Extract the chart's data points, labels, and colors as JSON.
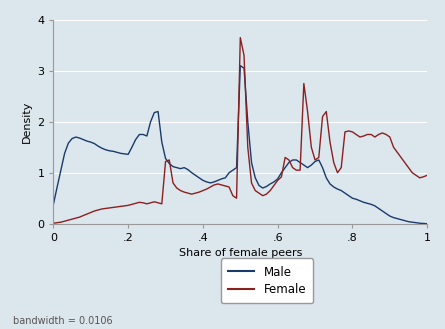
{
  "title": "",
  "xlabel": "Share of female peers",
  "ylabel": "Density",
  "bandwidth_text": "bandwidth = 0.0106",
  "male_color": "#1a3a6b",
  "female_color": "#8b2020",
  "background_color": "#dce6ed",
  "plot_bg_color": "#dce6ed",
  "xlim": [
    0,
    1
  ],
  "ylim": [
    0,
    4
  ],
  "yticks": [
    0,
    1,
    2,
    3,
    4
  ],
  "xticks": [
    0,
    0.2,
    0.4,
    0.6,
    0.8,
    1.0
  ],
  "xticklabels": [
    "0",
    ".2",
    ".4",
    ".6",
    ".8",
    "1"
  ],
  "legend_labels": [
    "Male",
    "Female"
  ],
  "male_x": [
    0.0,
    0.01,
    0.02,
    0.03,
    0.04,
    0.05,
    0.06,
    0.07,
    0.08,
    0.09,
    0.1,
    0.11,
    0.12,
    0.13,
    0.14,
    0.15,
    0.16,
    0.17,
    0.18,
    0.19,
    0.2,
    0.21,
    0.22,
    0.23,
    0.24,
    0.25,
    0.26,
    0.27,
    0.28,
    0.29,
    0.3,
    0.31,
    0.32,
    0.33,
    0.34,
    0.35,
    0.36,
    0.37,
    0.38,
    0.39,
    0.4,
    0.41,
    0.42,
    0.43,
    0.44,
    0.45,
    0.46,
    0.47,
    0.48,
    0.49,
    0.5,
    0.51,
    0.52,
    0.53,
    0.54,
    0.55,
    0.56,
    0.57,
    0.58,
    0.59,
    0.6,
    0.61,
    0.62,
    0.63,
    0.64,
    0.65,
    0.66,
    0.67,
    0.68,
    0.69,
    0.7,
    0.71,
    0.72,
    0.73,
    0.74,
    0.75,
    0.76,
    0.77,
    0.78,
    0.79,
    0.8,
    0.81,
    0.82,
    0.83,
    0.84,
    0.85,
    0.86,
    0.87,
    0.88,
    0.89,
    0.9,
    0.91,
    0.92,
    0.93,
    0.94,
    0.95,
    0.96,
    0.97,
    0.98,
    0.99,
    1.0
  ],
  "male_y": [
    0.38,
    0.72,
    1.05,
    1.38,
    1.58,
    1.67,
    1.7,
    1.68,
    1.65,
    1.62,
    1.6,
    1.57,
    1.52,
    1.48,
    1.45,
    1.43,
    1.42,
    1.4,
    1.38,
    1.37,
    1.36,
    1.5,
    1.65,
    1.75,
    1.75,
    1.72,
    2.0,
    2.18,
    2.2,
    1.6,
    1.28,
    1.18,
    1.12,
    1.1,
    1.08,
    1.1,
    1.06,
    1.0,
    0.95,
    0.9,
    0.85,
    0.82,
    0.8,
    0.82,
    0.85,
    0.88,
    0.9,
    1.0,
    1.05,
    1.1,
    3.1,
    3.05,
    2.0,
    1.2,
    0.9,
    0.75,
    0.7,
    0.73,
    0.78,
    0.82,
    0.88,
    1.0,
    1.1,
    1.2,
    1.25,
    1.25,
    1.2,
    1.15,
    1.1,
    1.15,
    1.22,
    1.25,
    1.1,
    0.9,
    0.78,
    0.72,
    0.68,
    0.65,
    0.6,
    0.55,
    0.5,
    0.48,
    0.45,
    0.42,
    0.4,
    0.38,
    0.35,
    0.3,
    0.25,
    0.2,
    0.15,
    0.12,
    0.1,
    0.08,
    0.06,
    0.04,
    0.03,
    0.02,
    0.01,
    0.005,
    0.0
  ],
  "female_x": [
    0.0,
    0.01,
    0.02,
    0.03,
    0.04,
    0.05,
    0.06,
    0.07,
    0.08,
    0.09,
    0.1,
    0.11,
    0.12,
    0.13,
    0.14,
    0.15,
    0.16,
    0.17,
    0.18,
    0.19,
    0.2,
    0.21,
    0.22,
    0.23,
    0.24,
    0.25,
    0.26,
    0.27,
    0.28,
    0.29,
    0.3,
    0.31,
    0.32,
    0.33,
    0.34,
    0.35,
    0.36,
    0.37,
    0.38,
    0.39,
    0.4,
    0.41,
    0.42,
    0.43,
    0.44,
    0.45,
    0.46,
    0.47,
    0.48,
    0.49,
    0.5,
    0.51,
    0.52,
    0.53,
    0.54,
    0.55,
    0.56,
    0.57,
    0.58,
    0.59,
    0.6,
    0.61,
    0.62,
    0.63,
    0.64,
    0.65,
    0.66,
    0.67,
    0.68,
    0.69,
    0.7,
    0.71,
    0.72,
    0.73,
    0.74,
    0.75,
    0.76,
    0.77,
    0.78,
    0.79,
    0.8,
    0.81,
    0.82,
    0.83,
    0.84,
    0.85,
    0.86,
    0.87,
    0.88,
    0.89,
    0.9,
    0.91,
    0.92,
    0.93,
    0.94,
    0.95,
    0.96,
    0.97,
    0.98,
    0.99,
    1.0
  ],
  "female_y": [
    0.01,
    0.02,
    0.03,
    0.05,
    0.07,
    0.09,
    0.11,
    0.13,
    0.16,
    0.19,
    0.22,
    0.25,
    0.27,
    0.29,
    0.3,
    0.31,
    0.32,
    0.33,
    0.34,
    0.35,
    0.36,
    0.38,
    0.4,
    0.42,
    0.41,
    0.39,
    0.41,
    0.43,
    0.41,
    0.39,
    1.22,
    1.25,
    0.8,
    0.7,
    0.65,
    0.62,
    0.6,
    0.58,
    0.6,
    0.62,
    0.65,
    0.68,
    0.72,
    0.76,
    0.78,
    0.76,
    0.74,
    0.72,
    0.55,
    0.5,
    3.65,
    3.3,
    1.5,
    0.8,
    0.65,
    0.6,
    0.55,
    0.58,
    0.65,
    0.75,
    0.85,
    0.92,
    1.3,
    1.25,
    1.1,
    1.05,
    1.05,
    2.75,
    2.2,
    1.5,
    1.25,
    1.3,
    2.1,
    2.2,
    1.6,
    1.2,
    1.0,
    1.1,
    1.8,
    1.82,
    1.8,
    1.75,
    1.7,
    1.72,
    1.75,
    1.75,
    1.7,
    1.75,
    1.78,
    1.75,
    1.7,
    1.5,
    1.4,
    1.3,
    1.2,
    1.1,
    1.0,
    0.95,
    0.9,
    0.92,
    0.95
  ]
}
